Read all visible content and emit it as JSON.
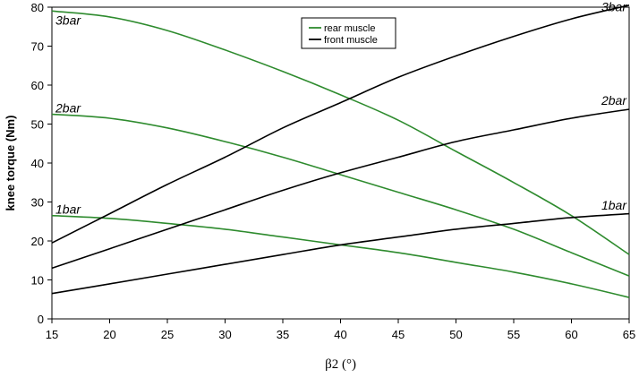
{
  "chart_data": {
    "type": "line",
    "xlabel": "β2 (°)",
    "ylabel": "knee torque (Nm)",
    "xlim": [
      15,
      65
    ],
    "ylim": [
      0,
      80
    ],
    "x_ticks": [
      "15",
      "20",
      "25",
      "30",
      "35",
      "40",
      "45",
      "50",
      "55",
      "60",
      "65"
    ],
    "y_ticks": [
      "0",
      "10",
      "20",
      "30",
      "40",
      "50",
      "60",
      "70",
      "80"
    ],
    "grid": false,
    "legend": {
      "placement": "top-center",
      "entries": [
        {
          "name": "rear muscle",
          "color": "#2e8b2e"
        },
        {
          "name": "front muscle",
          "color": "#000000"
        }
      ]
    },
    "curve_labels": [
      {
        "text": "3bar",
        "side": "left",
        "y": 75.5
      },
      {
        "text": "2bar",
        "side": "left",
        "y": 53.0
      },
      {
        "text": "1bar",
        "side": "left",
        "y": 27.0
      },
      {
        "text": "3bar",
        "side": "right",
        "y": 79.0
      },
      {
        "text": "2bar",
        "side": "right",
        "y": 55.0
      },
      {
        "text": "1bar",
        "side": "right",
        "y": 28.0
      }
    ],
    "x": [
      15,
      20,
      25,
      30,
      35,
      40,
      45,
      50,
      55,
      60,
      65
    ],
    "series": [
      {
        "name": "rear muscle",
        "group": "3bar",
        "color": "#2e8b2e",
        "values": [
          79,
          77.5,
          74,
          69,
          63.5,
          57.5,
          51,
          43,
          35,
          26.5,
          16.5
        ]
      },
      {
        "name": "rear muscle",
        "group": "2bar",
        "color": "#2e8b2e",
        "values": [
          52.5,
          51.5,
          49,
          45.5,
          41.5,
          37,
          32.5,
          28,
          23,
          17,
          11
        ]
      },
      {
        "name": "rear muscle",
        "group": "1bar",
        "color": "#2e8b2e",
        "values": [
          26.5,
          25.8,
          24.5,
          23,
          21,
          19,
          17,
          14.5,
          12,
          9,
          5.5
        ]
      },
      {
        "name": "front muscle",
        "group": "3bar",
        "color": "#000000",
        "values": [
          19.5,
          27,
          34.5,
          41.5,
          49,
          55.5,
          62,
          67.5,
          72.5,
          77,
          80.5
        ]
      },
      {
        "name": "front muscle",
        "group": "2bar",
        "color": "#000000",
        "values": [
          13,
          18,
          23,
          28,
          33,
          37.5,
          41.5,
          45.5,
          48.5,
          51.5,
          53.8
        ]
      },
      {
        "name": "front muscle",
        "group": "1bar",
        "color": "#000000",
        "values": [
          6.5,
          9,
          11.5,
          14,
          16.5,
          19,
          21,
          23,
          24.5,
          26,
          27
        ]
      }
    ]
  }
}
